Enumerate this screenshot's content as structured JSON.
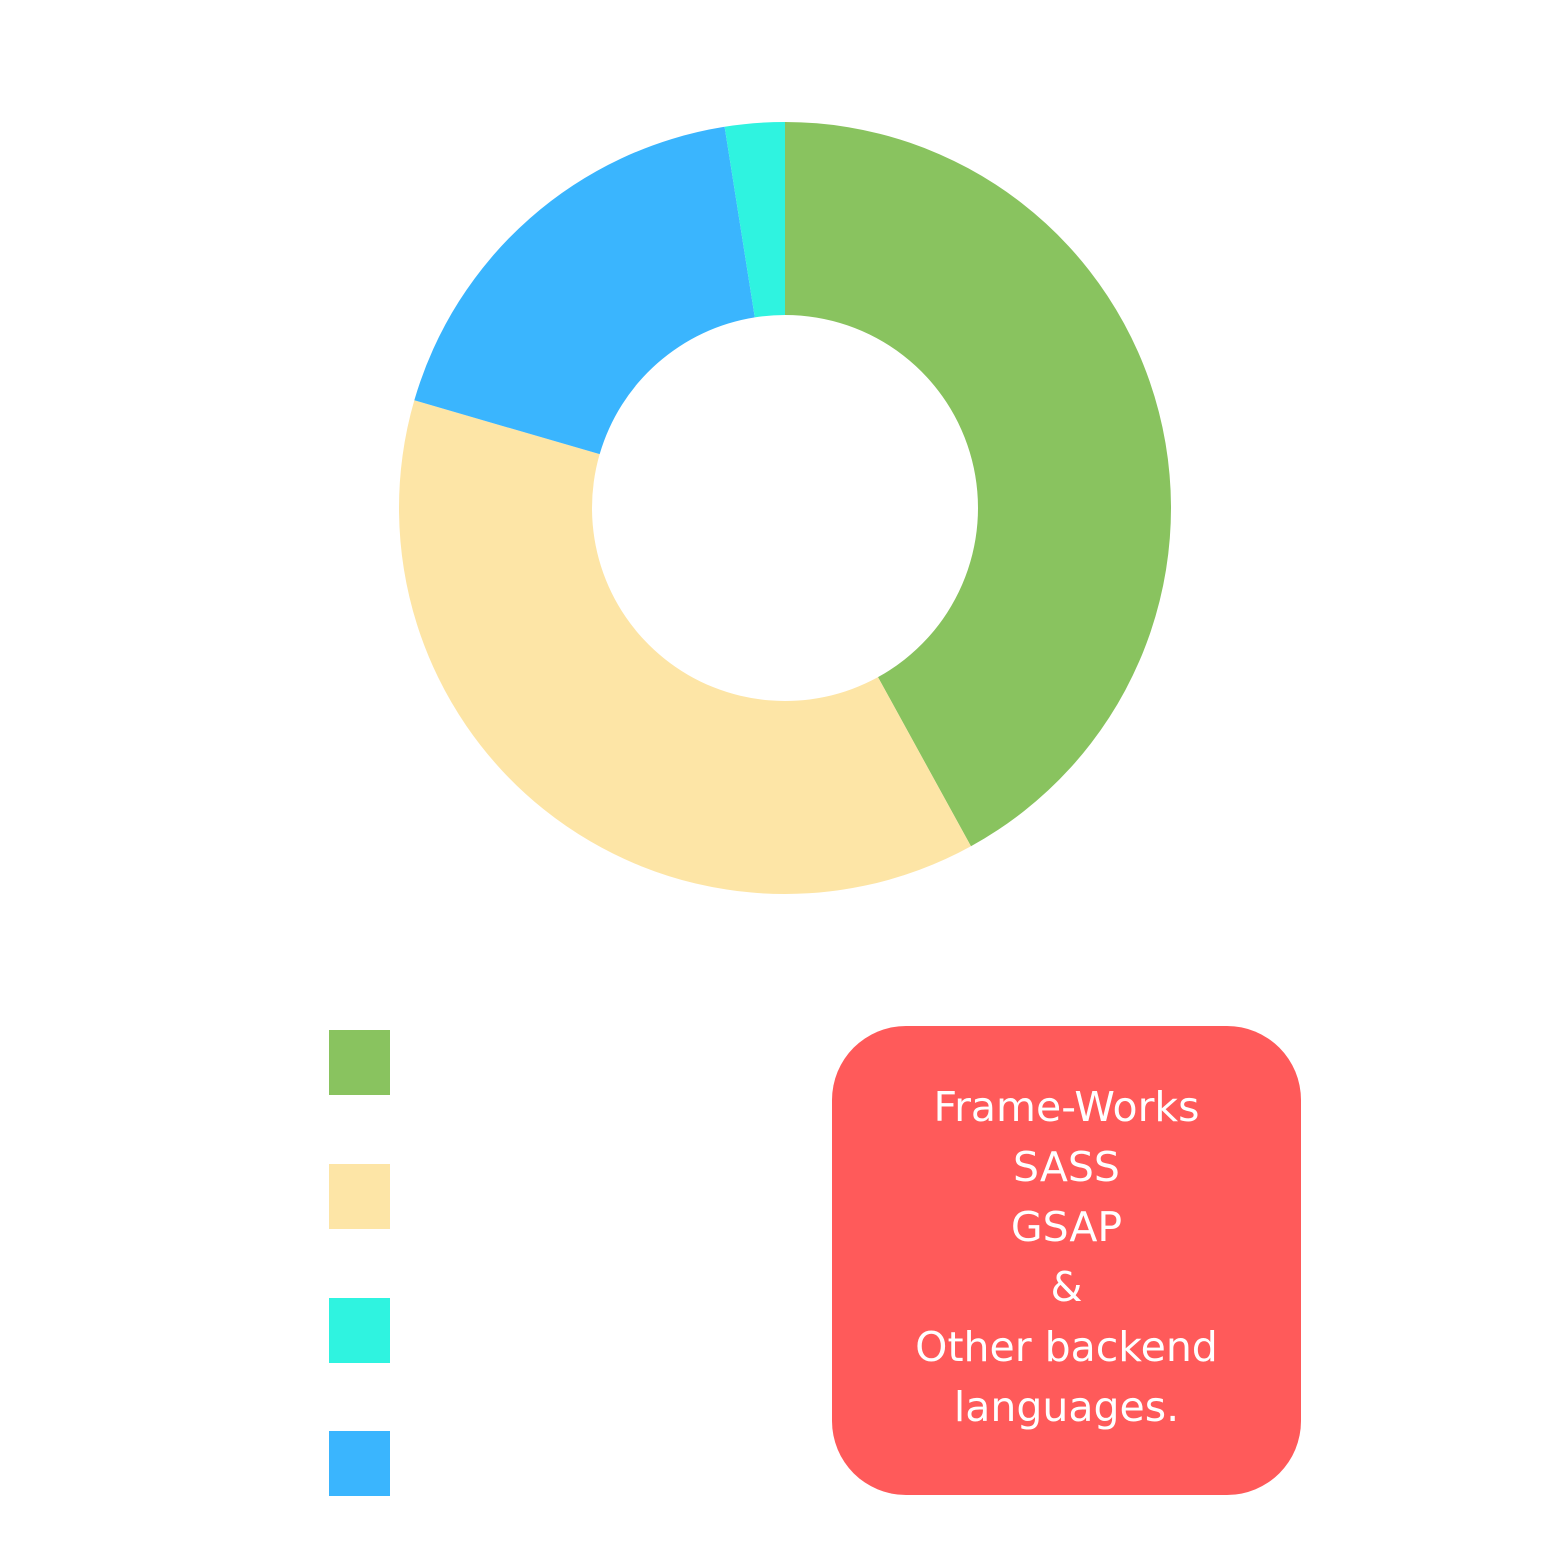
{
  "chart_data": {
    "type": "pie",
    "variant": "donut",
    "title": "",
    "legend_placement": "bottom-left",
    "start_angle": "top",
    "direction": "clockwise",
    "series": [
      {
        "value": 42.0,
        "color": "#89c35f"
      },
      {
        "value": 37.5,
        "color": "#fde5a6"
      },
      {
        "value": 18.0,
        "color": "#3ab5fe"
      },
      {
        "value": 2.5,
        "color": "#2ff3e0"
      }
    ],
    "legend_order": [
      0,
      1,
      3,
      2
    ]
  },
  "note": {
    "background": "#ff5a5a",
    "text_color": "#ffffff",
    "lines": [
      "Frame-Works",
      "SASS",
      "GSAP",
      "&",
      "Other backend",
      "languages."
    ]
  }
}
